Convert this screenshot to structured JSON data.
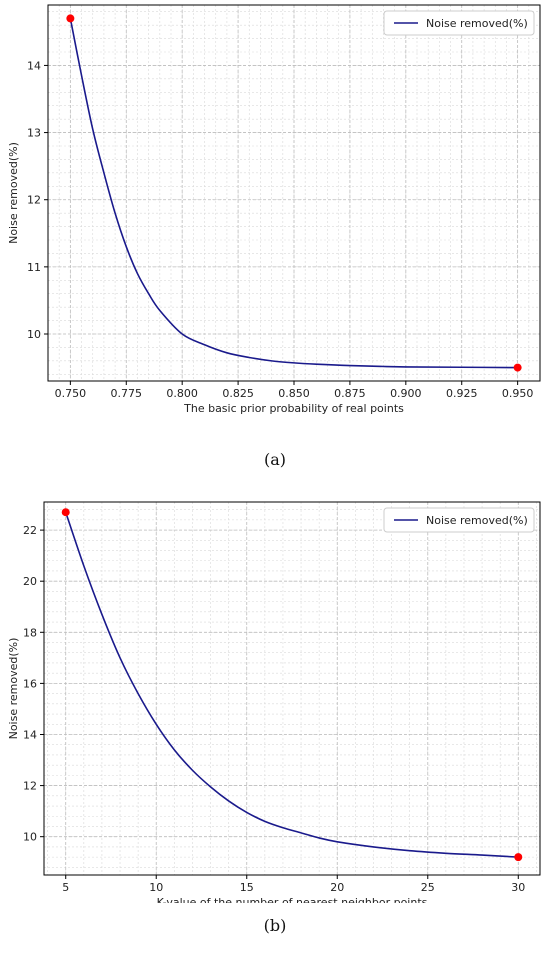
{
  "chart_data": [
    {
      "type": "line",
      "caption": "(a)",
      "xlabel": "The basic prior probability of real points",
      "ylabel": "Noise removed(%)",
      "xlim": [
        0.74,
        0.96
      ],
      "ylim": [
        9.3,
        14.9
      ],
      "xticks": [
        0.75,
        0.775,
        0.8,
        0.825,
        0.85,
        0.875,
        0.9,
        0.925,
        0.95
      ],
      "xtick_labels": [
        "0.750",
        "0.775",
        "0.800",
        "0.825",
        "0.850",
        "0.875",
        "0.900",
        "0.925",
        "0.950"
      ],
      "yticks": [
        10,
        11,
        12,
        13,
        14
      ],
      "ytick_labels": [
        "10",
        "11",
        "12",
        "13",
        "14"
      ],
      "grid": true,
      "legend": "top-right",
      "series": [
        {
          "name": "Noise removed(%)",
          "color": "#1a1a8c",
          "x": [
            0.75,
            0.755,
            0.76,
            0.765,
            0.77,
            0.775,
            0.78,
            0.785,
            0.79,
            0.8,
            0.81,
            0.82,
            0.83,
            0.84,
            0.85,
            0.86,
            0.875,
            0.9,
            0.925,
            0.95
          ],
          "y": [
            14.7,
            13.85,
            13.05,
            12.4,
            11.8,
            11.3,
            10.9,
            10.6,
            10.35,
            10.0,
            9.84,
            9.72,
            9.65,
            9.6,
            9.57,
            9.55,
            9.53,
            9.51,
            9.505,
            9.5
          ]
        }
      ],
      "highlight_points": {
        "color": "#ff0000",
        "x": [
          0.75,
          0.95
        ],
        "y": [
          14.7,
          9.5
        ]
      }
    },
    {
      "type": "line",
      "caption": "(b)",
      "xlabel": "K-value of the number of nearest neighbor points",
      "ylabel": "Noise removed(%)",
      "xlim": [
        3.8,
        31.2
      ],
      "ylim": [
        8.5,
        23.1
      ],
      "xticks": [
        5,
        10,
        15,
        20,
        25,
        30
      ],
      "xtick_labels": [
        "5",
        "10",
        "15",
        "20",
        "25",
        "30"
      ],
      "yticks": [
        10,
        12,
        14,
        16,
        18,
        20,
        22
      ],
      "ytick_labels": [
        "10",
        "12",
        "14",
        "16",
        "18",
        "20",
        "22"
      ],
      "grid": true,
      "legend": "top-right",
      "series": [
        {
          "name": "Noise removed(%)",
          "color": "#1a1a8c",
          "x": [
            5,
            6,
            7,
            8,
            9,
            10,
            11,
            12,
            13,
            14,
            15,
            16,
            17,
            18,
            19,
            20,
            22,
            24,
            26,
            28,
            30
          ],
          "y": [
            22.7,
            20.6,
            18.7,
            17.0,
            15.6,
            14.4,
            13.4,
            12.6,
            11.95,
            11.4,
            10.95,
            10.6,
            10.35,
            10.15,
            9.95,
            9.8,
            9.6,
            9.45,
            9.35,
            9.28,
            9.2
          ]
        }
      ],
      "highlight_points": {
        "color": "#ff0000",
        "x": [
          5,
          30
        ],
        "y": [
          22.7,
          9.2
        ]
      }
    }
  ]
}
